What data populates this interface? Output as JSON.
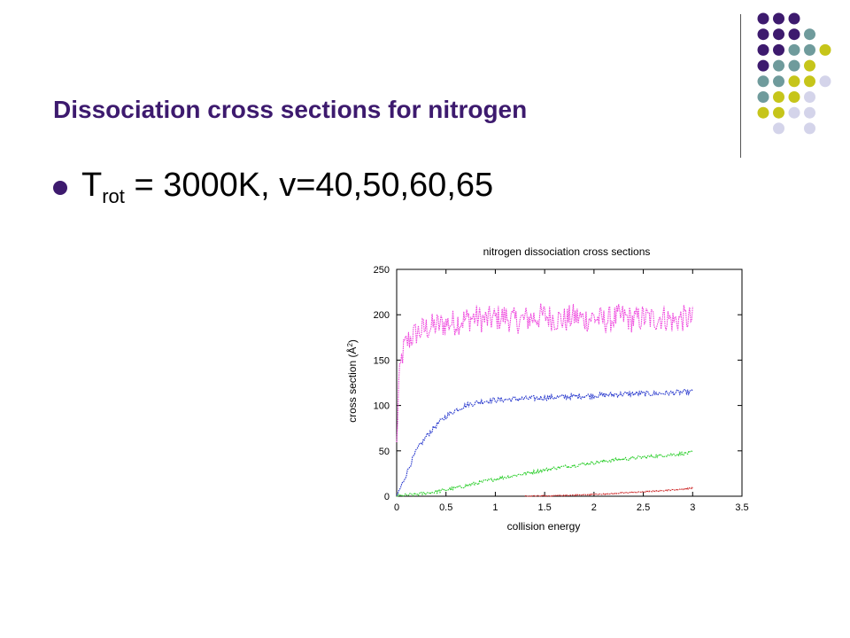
{
  "slide": {
    "title": "Dissociation cross sections for nitrogen",
    "bullet": {
      "base": "T",
      "sub": "rot",
      "rest": " = 3000K, v=40,50,60,65"
    }
  },
  "decor": {
    "dot_colors": {
      "purple": "#3d1a6e",
      "teal": "#6f9b9c",
      "olive": "#c6c51a",
      "lavender": "#d4d4ea"
    },
    "dot_grid": [
      [
        "P",
        "P",
        "P",
        "",
        ""
      ],
      [
        "P",
        "P",
        "P",
        "T",
        ""
      ],
      [
        "P",
        "P",
        "T",
        "T",
        "O"
      ],
      [
        "P",
        "T",
        "T",
        "O",
        ""
      ],
      [
        "T",
        "T",
        "O",
        "O",
        "L"
      ],
      [
        "T",
        "O",
        "O",
        "L",
        ""
      ],
      [
        "O",
        "O",
        "L",
        "L",
        ""
      ],
      [
        "",
        "L",
        "",
        "L",
        ""
      ]
    ]
  },
  "chart_data": {
    "type": "line",
    "title": "nitrogen dissociation cross sections",
    "xlabel": "collision energy",
    "ylabel_prefix": "cross section (",
    "ylabel_unit": "Å",
    "ylabel_sup": "2",
    "ylabel_suffix": ")",
    "xlim": [
      0,
      3.5
    ],
    "ylim": [
      0,
      250
    ],
    "xticks": [
      0,
      0.5,
      1,
      1.5,
      2,
      2.5,
      3,
      3.5
    ],
    "xtick_labels": [
      "0",
      "0.5",
      "1",
      "1.5",
      "2",
      "2.5",
      "3",
      "3.5"
    ],
    "yticks": [
      0,
      50,
      100,
      150,
      200,
      250
    ],
    "ytick_labels": [
      "0",
      "50",
      "100",
      "150",
      "200",
      "250"
    ],
    "grid": false,
    "legend": "none",
    "series": [
      {
        "color": "#ee44dd",
        "x": [
          0.0,
          0.02,
          0.05,
          0.08,
          0.12,
          0.2,
          0.3,
          0.4,
          0.5,
          0.6,
          0.7,
          0.8,
          0.9,
          1.0,
          1.1,
          1.2,
          1.3,
          1.4,
          1.5,
          1.6,
          1.7,
          1.8,
          1.9,
          2.0,
          2.1,
          2.2,
          2.3,
          2.4,
          2.5,
          2.6,
          2.7,
          2.8,
          2.9,
          3.0
        ],
        "y": [
          55,
          120,
          152,
          165,
          172,
          180,
          185,
          188,
          190,
          192,
          195,
          197,
          194,
          196,
          198,
          193,
          195,
          197,
          199,
          196,
          194,
          198,
          195,
          197,
          193,
          196,
          198,
          194,
          197,
          195,
          198,
          193,
          196,
          195
        ],
        "noise": 15
      },
      {
        "color": "#2233cc",
        "x": [
          0.0,
          0.05,
          0.1,
          0.15,
          0.2,
          0.3,
          0.4,
          0.5,
          0.6,
          0.7,
          0.8,
          0.9,
          1.0,
          1.2,
          1.4,
          1.6,
          1.8,
          2.0,
          2.2,
          2.4,
          2.6,
          2.8,
          3.0
        ],
        "y": [
          0,
          12,
          25,
          38,
          50,
          66,
          78,
          88,
          95,
          100,
          103,
          105,
          106,
          107,
          108,
          109,
          110,
          111,
          112,
          113,
          113,
          114,
          115
        ],
        "noise": 3
      },
      {
        "color": "#22cc22",
        "x": [
          0.0,
          0.2,
          0.4,
          0.6,
          0.8,
          1.0,
          1.2,
          1.4,
          1.6,
          1.8,
          2.0,
          2.2,
          2.4,
          2.6,
          2.8,
          3.0
        ],
        "y": [
          0,
          2,
          5,
          9,
          14,
          19,
          23,
          27,
          31,
          34,
          37,
          40,
          42,
          44,
          46,
          48
        ],
        "noise": 2
      },
      {
        "color": "#cc2222",
        "x": [
          1.3,
          1.5,
          1.7,
          1.9,
          2.1,
          2.3,
          2.5,
          2.7,
          2.9,
          3.0
        ],
        "y": [
          0,
          0.3,
          0.8,
          1.5,
          2.5,
          3.6,
          4.8,
          6.2,
          7.8,
          9
        ],
        "noise": 0.6
      }
    ]
  }
}
